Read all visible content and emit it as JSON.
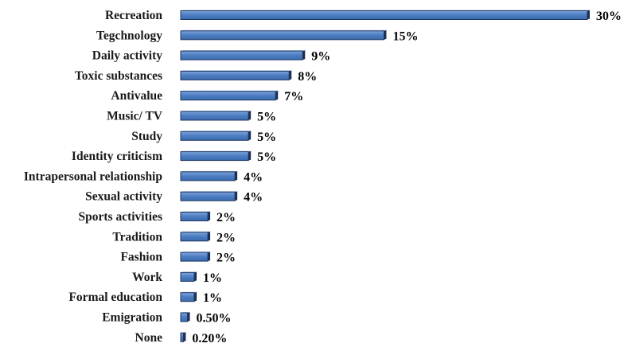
{
  "chart_data": {
    "type": "bar",
    "orientation": "horizontal",
    "categories": [
      "Recreation",
      "Tegchnology",
      "Daily activity",
      "Toxic substances",
      "Antivalue",
      "Music/ TV",
      "Study",
      "Identity criticism",
      "Intrapersonal relationship",
      "Sexual activity",
      "Sports activities",
      "Tradition",
      "Fashion",
      "Work",
      "Formal education",
      "Emigration",
      "None"
    ],
    "values": [
      30,
      15,
      9,
      8,
      7,
      5,
      5,
      5,
      4,
      4,
      2,
      2,
      2,
      1,
      1,
      0.5,
      0.2
    ],
    "value_labels": [
      "30%",
      "15%",
      "9%",
      "8%",
      "7%",
      "5%",
      "5%",
      "5%",
      "4%",
      "4%",
      "2%",
      "2%",
      "2%",
      "1%",
      "1%",
      "0.50%",
      "0.20%"
    ],
    "xlim": [
      0,
      30
    ],
    "grid": false,
    "bar_color": "#4f7fc3",
    "bar_edge_color": "#1f3660"
  }
}
